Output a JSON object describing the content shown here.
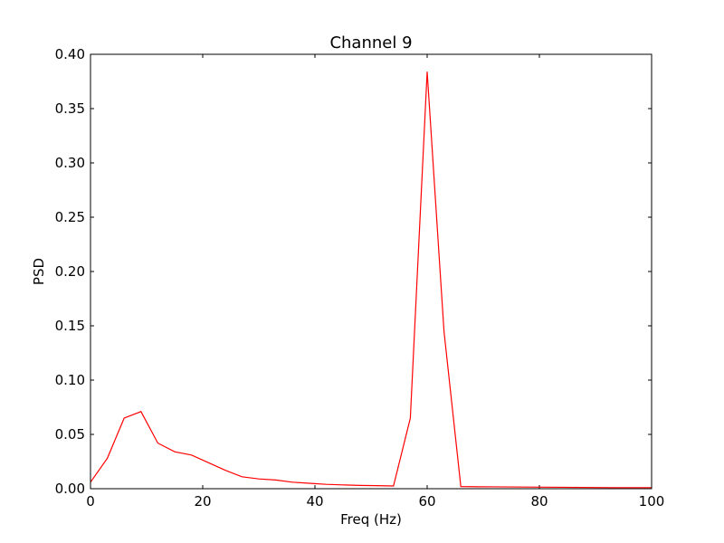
{
  "chart_data": {
    "type": "line",
    "title": "Channel 9",
    "xlabel": "Freq (Hz)",
    "ylabel": "PSD",
    "xlim": [
      0,
      100
    ],
    "ylim": [
      0,
      0.4
    ],
    "xticks": [
      0,
      20,
      40,
      60,
      80,
      100
    ],
    "yticks": [
      0.0,
      0.05,
      0.1,
      0.15,
      0.2,
      0.25,
      0.3,
      0.35,
      0.4
    ],
    "xtick_labels": [
      "0",
      "20",
      "40",
      "60",
      "80",
      "100"
    ],
    "ytick_labels": [
      "0.00",
      "0.05",
      "0.10",
      "0.15",
      "0.20",
      "0.25",
      "0.30",
      "0.35",
      "0.40"
    ],
    "grid": false,
    "series": [
      {
        "color": "#ff0000",
        "x": [
          0,
          3,
          6,
          9,
          12,
          15,
          18,
          21,
          24,
          27,
          30,
          33,
          36,
          39,
          42,
          45,
          48,
          51,
          54,
          57,
          60,
          63,
          66,
          69,
          72,
          75,
          78,
          81,
          84,
          87,
          90,
          93,
          96,
          100
        ],
        "y": [
          0.006,
          0.028,
          0.065,
          0.071,
          0.042,
          0.034,
          0.031,
          0.024,
          0.017,
          0.011,
          0.009,
          0.008,
          0.006,
          0.005,
          0.004,
          0.0035,
          0.003,
          0.0028,
          0.0025,
          0.065,
          0.384,
          0.145,
          0.002,
          0.0018,
          0.0017,
          0.0016,
          0.0015,
          0.0014,
          0.0013,
          0.0012,
          0.0011,
          0.001,
          0.001,
          0.001
        ]
      }
    ]
  }
}
